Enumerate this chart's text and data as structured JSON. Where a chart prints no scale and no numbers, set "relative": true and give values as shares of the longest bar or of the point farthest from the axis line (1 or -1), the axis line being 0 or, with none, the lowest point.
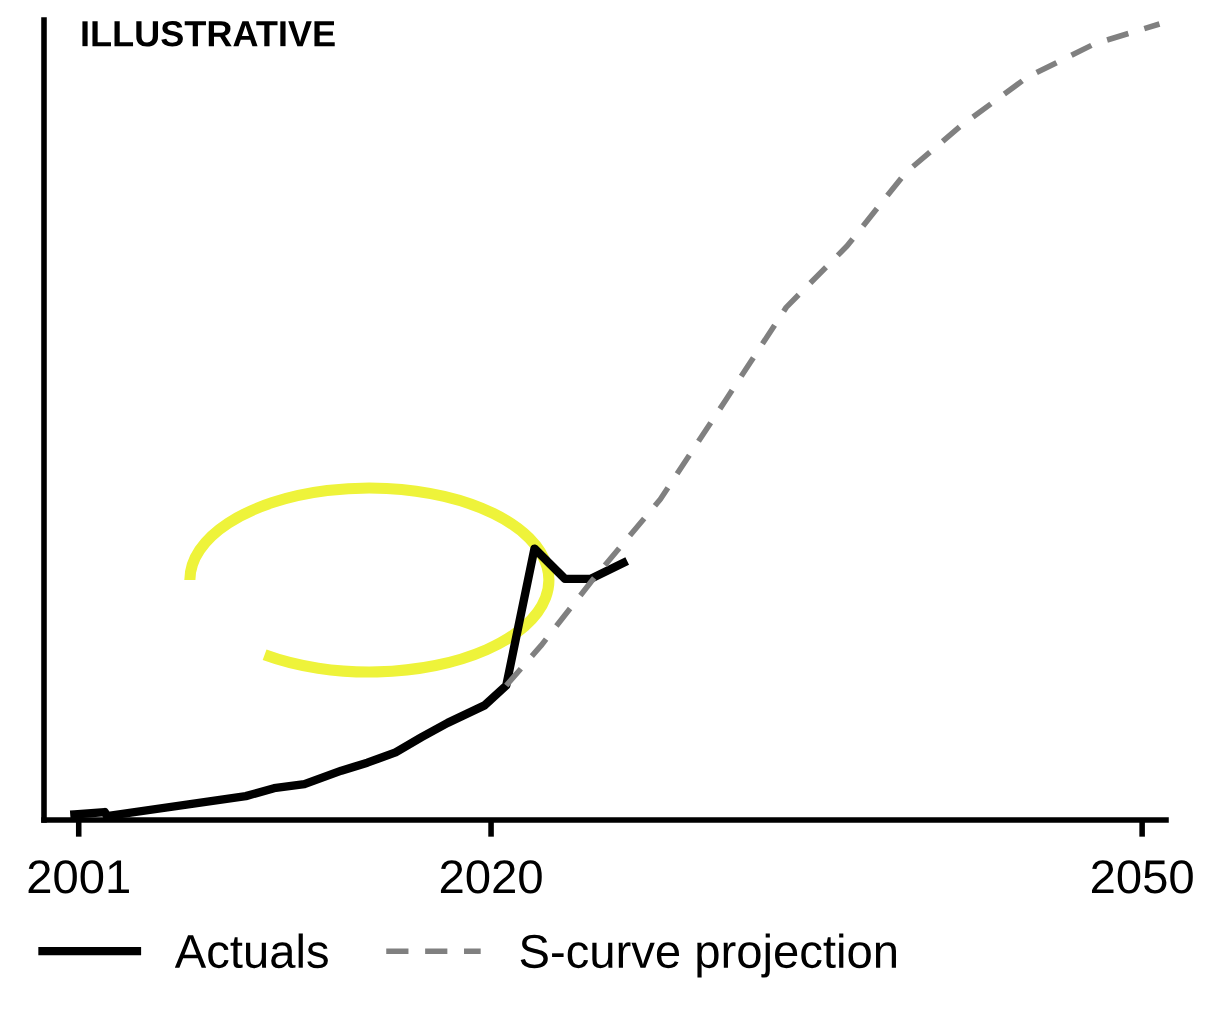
{
  "chart_data": {
    "type": "line",
    "relative": true,
    "annotations": [
      "ILLUSTRATIVE"
    ],
    "xlim": [
      1999.4,
      2051.1
    ],
    "xticks": [
      2001,
      2020,
      2050
    ],
    "grid": false,
    "legend": "bottom",
    "marker": "none",
    "series": [
      {
        "name": "Actuals",
        "color": "#000000",
        "line_style": "solid",
        "x": [
          2000.8,
          2002.2,
          2002.3,
          2008.7,
          2010.0,
          2011.4,
          2013.1,
          2014.3,
          2015.6,
          2016.8,
          2018.0,
          2019.7,
          2020.7,
          2022.0,
          2023.4,
          2024.6,
          2026.1
        ],
        "values": [
          0.007,
          0.01,
          0.005,
          0.03,
          0.04,
          0.045,
          0.062,
          0.072,
          0.085,
          0.104,
          0.122,
          0.144,
          0.169,
          0.341,
          0.303,
          0.303,
          0.323
        ]
      },
      {
        "name": "S-curve projection",
        "color": "#808080",
        "line_style": "dashed",
        "x": [
          2020.7,
          2022.3,
          2024.6,
          2027.8,
          2030.8,
          2033.6,
          2036.4,
          2039.1,
          2041.6,
          2044.7,
          2047.8,
          2050.8
        ],
        "values": [
          0.169,
          0.219,
          0.299,
          0.403,
          0.527,
          0.644,
          0.721,
          0.813,
          0.871,
          0.933,
          0.975,
          1.0
        ]
      }
    ]
  }
}
